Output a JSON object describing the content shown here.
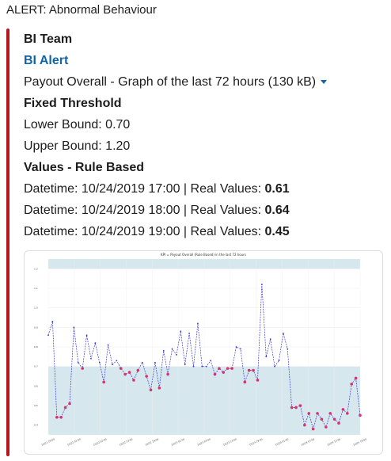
{
  "alert": {
    "title": "ALERT: Abnormal Behaviour"
  },
  "attachment": {
    "author": "BI Team",
    "link": "BI Alert",
    "file_label": "Payout Overall - Graph of the last 72 hours (130 kB)",
    "threshold_heading": "Fixed Threshold",
    "lower_bound": "Lower Bound: 0.70",
    "upper_bound": "Upper Bound: 1.20",
    "values_heading": "Values - Rule Based",
    "rows": [
      {
        "prefix": "Datetime: 10/24/2019 17:00 | Real Values: ",
        "value": "0.61"
      },
      {
        "prefix": "Datetime: 10/24/2019 18:00 | Real Values: ",
        "value": "0.64"
      },
      {
        "prefix": "Datetime: 10/24/2019 19:00 | Real Values: ",
        "value": "0.45"
      }
    ],
    "bar_color": "#b8141f",
    "link_color": "#1264a3"
  },
  "chart_data": {
    "type": "line",
    "title": "KPI = Payout Overall (Rule Based) in the last 72 hours",
    "ylim": [
      0.35,
      1.25
    ],
    "yticks": [
      "0.4",
      "0.5",
      "0.6",
      "0.7",
      "0.8",
      "0.9",
      "1.0",
      "1.1",
      "1.2"
    ],
    "xticks": [
      "10/21 19:00",
      "10/22 01:00",
      "10/22 07:00",
      "10/22 13:00",
      "10/22 19:00",
      "10/23 01:00",
      "10/23 07:00",
      "10/23 13:00",
      "10/23 19:00",
      "10/24 01:00",
      "10/24 07:00",
      "10/24 13:00",
      "10/24 19:00"
    ],
    "bands": [
      {
        "from": 0.35,
        "to": 0.7,
        "color": "#d7e7ee"
      },
      {
        "from": 1.2,
        "to": 1.25,
        "color": "#d7e7ee"
      }
    ],
    "line_color": "#3a3ad6",
    "anomaly_color": "#d6336c",
    "series": [
      {
        "values": [
          0.86,
          0.93,
          0.44,
          0.44,
          0.49,
          0.51,
          0.9,
          0.72,
          0.69,
          0.86,
          0.74,
          0.82,
          0.72,
          0.62,
          0.81,
          0.71,
          0.73,
          0.69,
          0.66,
          0.67,
          0.63,
          0.68,
          0.72,
          0.65,
          0.58,
          0.72,
          0.59,
          0.78,
          0.66,
          0.79,
          0.76,
          0.88,
          0.71,
          0.87,
          0.7,
          0.92,
          0.7,
          0.7,
          0.73,
          0.66,
          0.69,
          0.67,
          0.69,
          0.69,
          0.8,
          0.79,
          0.62,
          0.68,
          0.68,
          0.63,
          1.12,
          0.75,
          0.84,
          0.7,
          0.73,
          0.87,
          0.79,
          0.49,
          0.49,
          0.5,
          0.4,
          0.46,
          0.38,
          0.46,
          0.43,
          0.39,
          0.46,
          0.43,
          0.41,
          0.48,
          0.46,
          0.61,
          0.64,
          0.45
        ]
      }
    ]
  }
}
